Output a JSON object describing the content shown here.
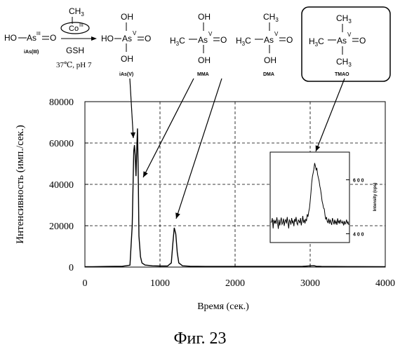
{
  "figure_caption": "Фиг. 23",
  "scheme": {
    "reactant": {
      "ho": "HO",
      "as": "As",
      "ox": "III",
      "eq": "O",
      "label": "iAs(III)"
    },
    "reagent": {
      "ch3": "CH",
      "ch3_sub": "3",
      "co": "Co",
      "co_ox": "III",
      "gsh": "GSH",
      "conditions": "37℃, pH 7"
    },
    "products": [
      {
        "label": "iAs(V)",
        "left": "HO",
        "as": "As",
        "ox": "V",
        "eq": "O",
        "top": "OH",
        "bottom": "OH"
      },
      {
        "label": "MMA",
        "left": "H",
        "left_sub": "3",
        "left_c": "C",
        "as": "As",
        "ox": "V",
        "eq": "O",
        "top": "OH",
        "bottom": "OH"
      },
      {
        "label": "DMA",
        "left": "H",
        "left_sub": "3",
        "left_c": "C",
        "as": "As",
        "ox": "V",
        "eq": "O",
        "top": "CH",
        "top_sub": "3",
        "bottom": "OH"
      },
      {
        "label": "TMAO",
        "left": "H",
        "left_sub": "3",
        "left_c": "C",
        "as": "As",
        "ox": "V",
        "eq": "O",
        "top": "CH",
        "top_sub": "3",
        "bottom": "CH",
        "bottom_sub": "3"
      }
    ]
  },
  "chart_data": {
    "type": "line",
    "xlabel": "Время (сек.)",
    "ylabel": "Интенсивность (имп./сек.)",
    "xlim": [
      0,
      4000
    ],
    "ylim": [
      0,
      80000
    ],
    "x_ticks": [
      "0",
      "1000",
      "2000",
      "3000",
      "4000"
    ],
    "y_ticks": [
      "0",
      "20000",
      "40000",
      "60000",
      "80000"
    ],
    "grid": "dashed",
    "series": [
      {
        "x": [
          0,
          100,
          300,
          500,
          600,
          630,
          650,
          660,
          670,
          680,
          690,
          700,
          710,
          720,
          740,
          760,
          800,
          900,
          1000,
          1100,
          1150,
          1170,
          1190,
          1210,
          1230,
          1250,
          1300,
          1400,
          1600,
          2000,
          2500,
          2900,
          3050,
          3080,
          3150,
          3500,
          4000
        ],
        "y": [
          200,
          200,
          300,
          400,
          900,
          20000,
          56000,
          59000,
          54000,
          44000,
          56000,
          67000,
          45000,
          15000,
          5000,
          2000,
          1000,
          600,
          500,
          500,
          2000,
          11000,
          19000,
          16000,
          7000,
          2000,
          600,
          400,
          300,
          300,
          300,
          350,
          700,
          400,
          300,
          250,
          200
        ]
      }
    ],
    "annotations": [
      {
        "target": "iAs(V)",
        "x": 670,
        "y": 60000
      },
      {
        "target": "MMA",
        "x": 720,
        "y": 44000
      },
      {
        "target": "DMA",
        "x": 1200,
        "y": 23000
      },
      {
        "target": "TMAO",
        "x": 3070,
        "y": 55000
      }
    ]
  },
  "inset": {
    "ylabel": "Intensity (cps)",
    "y_ticks": [
      "400",
      "600"
    ],
    "ylim": [
      370,
      700
    ],
    "series_y": [
      442,
      444,
      458,
      420,
      452,
      440,
      448,
      437,
      461,
      443,
      418,
      452,
      431,
      446,
      460,
      435,
      441,
      456,
      429,
      447,
      452,
      438,
      462,
      443,
      420,
      451,
      446,
      434,
      458,
      441,
      447,
      428,
      455,
      444,
      462,
      439,
      433,
      451,
      447,
      439,
      458,
      431,
      447,
      466,
      441,
      452,
      438,
      455,
      447,
      472,
      463,
      481,
      495,
      521,
      553,
      587,
      612,
      626,
      640,
      662,
      651,
      637,
      644,
      620,
      607,
      596,
      576,
      564,
      544,
      522,
      510,
      495,
      492,
      468,
      453,
      462,
      445,
      441,
      456,
      437,
      452,
      441,
      433,
      458,
      447,
      435,
      452,
      438,
      446,
      433,
      457,
      441,
      448,
      437,
      452,
      443,
      439,
      446,
      431,
      447,
      436,
      441,
      452,
      438,
      444,
      433
    ]
  }
}
